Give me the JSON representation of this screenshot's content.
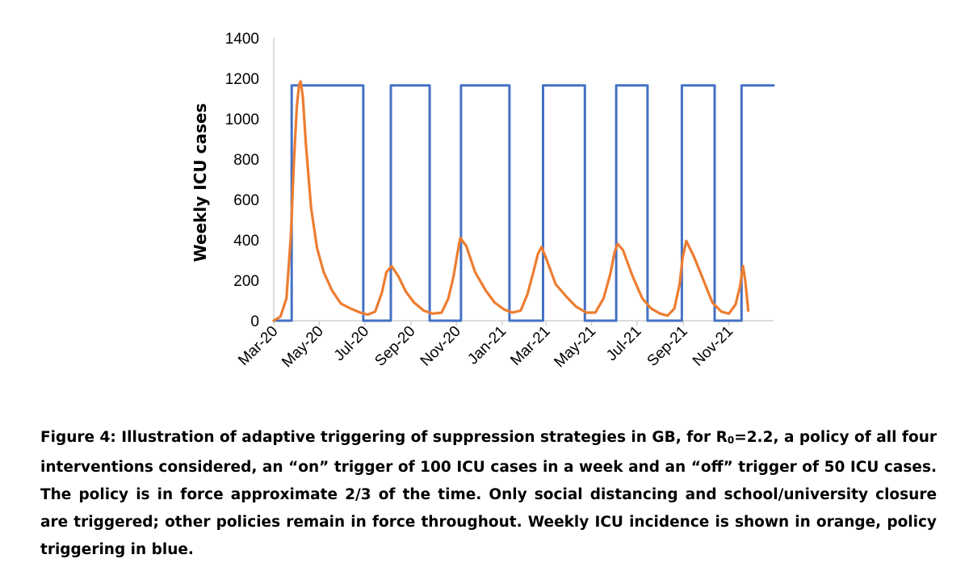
{
  "chart_data": {
    "type": "line",
    "ylabel": "Weekly ICU cases",
    "xlabel": "",
    "ylim": [
      0,
      1400
    ],
    "yticks": [
      0,
      200,
      400,
      600,
      800,
      1000,
      1200,
      1400
    ],
    "xlim": [
      "2020-03-01",
      "2021-12-31"
    ],
    "xticks": [
      "Mar-20",
      "May-20",
      "Jul-20",
      "Sep-20",
      "Nov-20",
      "Jan-21",
      "Mar-21",
      "May-21",
      "Jul-21",
      "Sep-21",
      "Nov-21"
    ],
    "grid": false,
    "legend": "none",
    "series": [
      {
        "color": "#4472C4",
        "step": true,
        "x": [
          "2020-03-01",
          "2020-03-25",
          "2020-03-25",
          "2020-06-29",
          "2020-06-29",
          "2020-08-05",
          "2020-08-05",
          "2020-09-26",
          "2020-09-26",
          "2020-11-07",
          "2020-11-07",
          "2021-01-11",
          "2021-01-11",
          "2021-02-25",
          "2021-02-25",
          "2021-04-22",
          "2021-04-22",
          "2021-06-03",
          "2021-06-03",
          "2021-07-15",
          "2021-07-15",
          "2021-08-30",
          "2021-08-30",
          "2021-10-13",
          "2021-10-13",
          "2021-11-18",
          "2021-11-18",
          "2021-12-31"
        ],
        "y": [
          0,
          0,
          1165,
          1165,
          0,
          0,
          1165,
          1165,
          0,
          0,
          1165,
          1165,
          0,
          0,
          1165,
          1165,
          0,
          0,
          1165,
          1165,
          0,
          0,
          1165,
          1165,
          0,
          0,
          1165,
          1165
        ]
      },
      {
        "color": "#ED7D31",
        "x": [
          "2020-03-01",
          "2020-03-10",
          "2020-03-18",
          "2020-03-24",
          "2020-03-28",
          "2020-04-01",
          "2020-04-04",
          "2020-04-06",
          "2020-04-09",
          "2020-04-13",
          "2020-04-20",
          "2020-04-28",
          "2020-05-07",
          "2020-05-18",
          "2020-05-30",
          "2020-06-12",
          "2020-06-25",
          "2020-07-05",
          "2020-07-15",
          "2020-07-24",
          "2020-07-30",
          "2020-08-06",
          "2020-08-15",
          "2020-08-25",
          "2020-09-05",
          "2020-09-18",
          "2020-09-30",
          "2020-10-12",
          "2020-10-21",
          "2020-10-28",
          "2020-11-02",
          "2020-11-06",
          "2020-11-14",
          "2020-11-26",
          "2020-12-10",
          "2020-12-22",
          "2021-01-04",
          "2021-01-15",
          "2021-01-26",
          "2021-02-04",
          "2021-02-12",
          "2021-02-18",
          "2021-02-23",
          "2021-03-02",
          "2021-03-14",
          "2021-03-28",
          "2021-04-10",
          "2021-04-24",
          "2021-05-06",
          "2021-05-17",
          "2021-05-26",
          "2021-06-01",
          "2021-06-05",
          "2021-06-12",
          "2021-06-25",
          "2021-07-08",
          "2021-07-20",
          "2021-08-01",
          "2021-08-11",
          "2021-08-20",
          "2021-08-27",
          "2021-08-31",
          "2021-09-05",
          "2021-09-15",
          "2021-09-28",
          "2021-10-10",
          "2021-10-22",
          "2021-11-01",
          "2021-11-10",
          "2021-11-16",
          "2021-11-20",
          "2021-11-23",
          "2021-11-27"
        ],
        "y": [
          0,
          20,
          110,
          420,
          780,
          1060,
          1170,
          1185,
          1110,
          880,
          560,
          360,
          240,
          150,
          85,
          60,
          40,
          30,
          45,
          140,
          240,
          270,
          220,
          145,
          90,
          50,
          35,
          40,
          110,
          220,
          330,
          410,
          370,
          240,
          150,
          90,
          55,
          40,
          50,
          130,
          240,
          330,
          365,
          300,
          180,
          120,
          70,
          40,
          40,
          110,
          230,
          340,
          380,
          350,
          220,
          110,
          60,
          35,
          25,
          60,
          180,
          310,
          395,
          320,
          200,
          90,
          45,
          35,
          80,
          170,
          270,
          200,
          50
        ]
      }
    ]
  },
  "caption": {
    "part1": "Figure 4: Illustration of adaptive triggering of suppression strategies in GB, for R",
    "sub": "0",
    "part2": "=2.2, a policy of all four interventions considered, an “on” trigger of 100 ICU cases in a week and an “off” trigger of 50 ICU cases.  The policy is in force approximate 2/3 of the time. Only social distancing and school/university closure are triggered; other policies remain in force throughout. Weekly ICU incidence is shown in orange, policy triggering in blue."
  }
}
